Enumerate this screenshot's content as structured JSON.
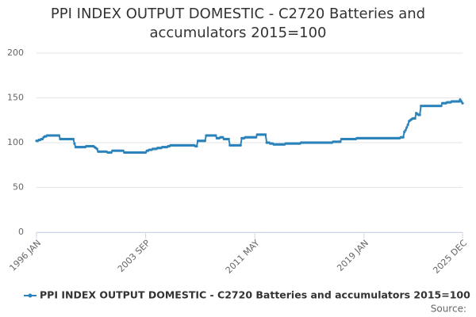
{
  "chart_data": {
    "type": "line",
    "title": "PPI INDEX OUTPUT DOMESTIC - C2720 Batteries and accumulators 2015=100",
    "source_label": "Source:",
    "categories": [
      "1996 JAN",
      null,
      null,
      null,
      null,
      null,
      null,
      null,
      null,
      null,
      null,
      null,
      null,
      null,
      null,
      null,
      null,
      null,
      null,
      null,
      null,
      null,
      null,
      null,
      null,
      null,
      null,
      null,
      null,
      null,
      null,
      null,
      null,
      null,
      null,
      null,
      null,
      null,
      null,
      null,
      null,
      null,
      null,
      null,
      null,
      null,
      null,
      null,
      null,
      null,
      null,
      null,
      null,
      null,
      null,
      null,
      null,
      null,
      null,
      null,
      null,
      null,
      null,
      null,
      null,
      null,
      null,
      null,
      null,
      null,
      null,
      null,
      null,
      null,
      null,
      null,
      null,
      null,
      null,
      null,
      null,
      null,
      null,
      null,
      null,
      null,
      null,
      null,
      null,
      null,
      null,
      null,
      "2003 SEP",
      null,
      null,
      null,
      null,
      null,
      null,
      null,
      null,
      null,
      null,
      null,
      null,
      null,
      null,
      null,
      null,
      null,
      null,
      null,
      null,
      null,
      null,
      null,
      null,
      null,
      null,
      null,
      null,
      null,
      null,
      null,
      null,
      null,
      null,
      null,
      null,
      null,
      null,
      null,
      null,
      null,
      null,
      null,
      null,
      null,
      null,
      null,
      null,
      null,
      null,
      null,
      null,
      null,
      null,
      null,
      null,
      null,
      null,
      null,
      null,
      null,
      null,
      null,
      null,
      null,
      null,
      null,
      null,
      null,
      null,
      null,
      null,
      null,
      null,
      null,
      null,
      null,
      null,
      null,
      null,
      null,
      null,
      null,
      null,
      null,
      null,
      null,
      null,
      null,
      null,
      null,
      "2011 MAY",
      null,
      null,
      null,
      null,
      null,
      null,
      null,
      null,
      null,
      null,
      null,
      null,
      null,
      null,
      null,
      null,
      null,
      null,
      null,
      null,
      null,
      null,
      null,
      null,
      null,
      null,
      null,
      null,
      null,
      null,
      null,
      null,
      null,
      null,
      null,
      null,
      null,
      null,
      null,
      null,
      null,
      null,
      null,
      null,
      null,
      null,
      null,
      null,
      null,
      null,
      null,
      null,
      null,
      null,
      null,
      null,
      null,
      null,
      null,
      null,
      null,
      null,
      null,
      null,
      null,
      null,
      null,
      null,
      null,
      null,
      null,
      null,
      null,
      null,
      null,
      null,
      null,
      null,
      null,
      null,
      null,
      null,
      null,
      null,
      null,
      null,
      null,
      null,
      null,
      null,
      null,
      "2019 JAN",
      null,
      null,
      null,
      null,
      null,
      null,
      null,
      null,
      null,
      null,
      null,
      null,
      null,
      null,
      null,
      null,
      null,
      null,
      null,
      null,
      null,
      null,
      null,
      null,
      null,
      null,
      null,
      null,
      null,
      null,
      null,
      null,
      null,
      null,
      null,
      null,
      null,
      null,
      null,
      null,
      null,
      null,
      null,
      null,
      null,
      null,
      null,
      null,
      null,
      null,
      null,
      null,
      null,
      null,
      null,
      null,
      null,
      null,
      null,
      null,
      null,
      null,
      null,
      null,
      null,
      null,
      null,
      null,
      null,
      null,
      null,
      null,
      null,
      null,
      null,
      null,
      null,
      null,
      null,
      null,
      null,
      null,
      "2025 DEC"
    ],
    "series": [
      {
        "name": "PPI INDEX OUTPUT DOMESTIC - C2720 Batteries and accumulators 2015=100",
        "color": "#2b83ba",
        "values": [
          102,
          102,
          103,
          103,
          104,
          104,
          106,
          107,
          107,
          108,
          108,
          108,
          108,
          108,
          108,
          108,
          108,
          108,
          108,
          108,
          104,
          104,
          104,
          104,
          104,
          104,
          104,
          104,
          104,
          104,
          104,
          104,
          99,
          95,
          95,
          95,
          95,
          95,
          95,
          95,
          95,
          95,
          96,
          96,
          96,
          96,
          96,
          96,
          96,
          95,
          94,
          93,
          90,
          90,
          90,
          90,
          90,
          90,
          90,
          90,
          89,
          89,
          89,
          89,
          91,
          91,
          91,
          91,
          91,
          91,
          91,
          91,
          91,
          91,
          89,
          89,
          89,
          89,
          89,
          89,
          89,
          89,
          89,
          89,
          89,
          89,
          89,
          89,
          89,
          89,
          89,
          89,
          89,
          91,
          91,
          92,
          92,
          92,
          93,
          93,
          93,
          93,
          94,
          94,
          94,
          94,
          95,
          95,
          95,
          95,
          95,
          96,
          96,
          97,
          97,
          97,
          97,
          97,
          97,
          97,
          97,
          97,
          97,
          97,
          97,
          97,
          97,
          97,
          97,
          97,
          97,
          97,
          97,
          97,
          96,
          96,
          102,
          102,
          102,
          102,
          102,
          102,
          102,
          108,
          108,
          108,
          108,
          108,
          108,
          108,
          108,
          108,
          105,
          105,
          105,
          106,
          106,
          106,
          104,
          104,
          104,
          104,
          104,
          97,
          97,
          97,
          97,
          97,
          97,
          97,
          97,
          97,
          97,
          105,
          105,
          105,
          106,
          106,
          106,
          106,
          106,
          106,
          106,
          106,
          106,
          106,
          109,
          109,
          109,
          109,
          109,
          109,
          109,
          109,
          100,
          100,
          100,
          99,
          99,
          99,
          98,
          98,
          98,
          98,
          98,
          98,
          98,
          98,
          98,
          98,
          99,
          99,
          99,
          99,
          99,
          99,
          99,
          99,
          99,
          99,
          99,
          99,
          99,
          100,
          100,
          100,
          100,
          100,
          100,
          100,
          100,
          100,
          100,
          100,
          100,
          100,
          100,
          100,
          100,
          100,
          100,
          100,
          100,
          100,
          100,
          100,
          100,
          100,
          100,
          100,
          101,
          101,
          101,
          101,
          101,
          101,
          101,
          104,
          104,
          104,
          104,
          104,
          104,
          104,
          104,
          104,
          104,
          104,
          104,
          104,
          105,
          105,
          105,
          105,
          105,
          105,
          105,
          105,
          105,
          105,
          105,
          105,
          105,
          105,
          105,
          105,
          105,
          105,
          105,
          105,
          105,
          105,
          105,
          105,
          105,
          105,
          105,
          105,
          105,
          105,
          105,
          105,
          105,
          105,
          105,
          105,
          105,
          106,
          106,
          106,
          112,
          114,
          117,
          120,
          124,
          125,
          126,
          127,
          127,
          127,
          133,
          132,
          131,
          131,
          141,
          141,
          141,
          141,
          141,
          141,
          141,
          141,
          141,
          141,
          141,
          141,
          141,
          141,
          141,
          141,
          141,
          141,
          144,
          144,
          144,
          144,
          145,
          145,
          145,
          145,
          146,
          146,
          146,
          146,
          146,
          146,
          146,
          148,
          146,
          144
        ]
      }
    ],
    "ylim": [
      0,
      200
    ],
    "yticks": [
      0,
      50,
      100,
      150,
      200
    ],
    "grid": true,
    "legend": "bottom"
  }
}
